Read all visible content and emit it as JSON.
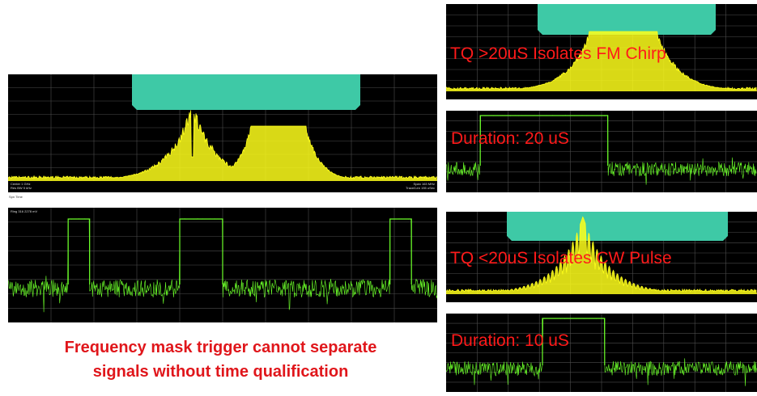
{
  "caption": {
    "line1": "Frequency mask trigger cannot separate",
    "line2": "signals without time qualification"
  },
  "left": {
    "spectrum": {
      "center_text": "Center 1 GHz",
      "rbw_text": "Res BW 5 kHz",
      "span_text": "Span 163 MHz",
      "trace_text": "Trace/Len 155 uSec"
    },
    "time_header": "Spn Time",
    "time_ref": "Ring 316 2278 mV"
  },
  "right_top": {
    "label": "TQ >20uS Isolates FM Chirp",
    "duration": "Duration: 20 uS"
  },
  "right_bottom": {
    "label": "TQ <20uS Isolates CW Pulse",
    "duration": "Duration: 10 uS"
  },
  "colors": {
    "mask": "#3ec9a6",
    "spectrum_trace": "#ffff1a",
    "time_trace": "#6cff2a",
    "label_text": "#ff1a1a",
    "caption_text": "#e0161b"
  },
  "icons": []
}
